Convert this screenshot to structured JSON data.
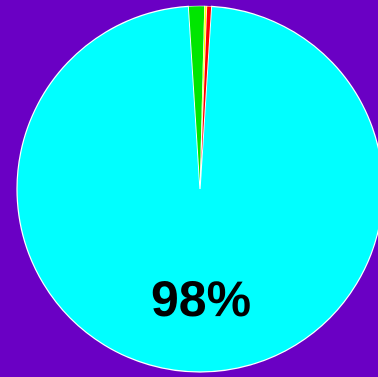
{
  "background_color": "#6a00c4",
  "chart_data": {
    "type": "pie",
    "slices": [
      {
        "value": 98,
        "color": "#00ffff"
      },
      {
        "value": 0.4,
        "color": "#ff0000"
      },
      {
        "value": 0.2,
        "color": "#ffff00"
      },
      {
        "value": 1.4,
        "color": "#00e600"
      }
    ],
    "slice_edge_color": "#ffffff",
    "data_label": "98%"
  }
}
